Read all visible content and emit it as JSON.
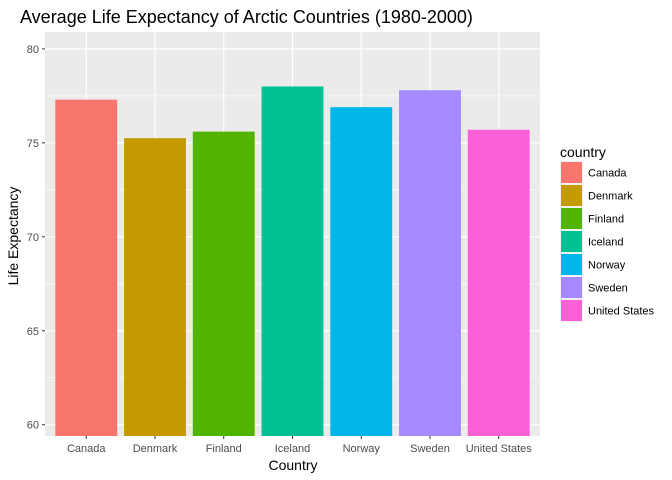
{
  "chart_data": {
    "type": "bar",
    "title": "Average Life Expectancy of Arctic Countries (1980-2000)",
    "xlabel": "Country",
    "ylabel": "Life Expectancy",
    "categories": [
      "Canada",
      "Denmark",
      "Finland",
      "Iceland",
      "Norway",
      "Sweden",
      "United States"
    ],
    "values": [
      77.3,
      75.25,
      75.6,
      78.0,
      76.9,
      77.8,
      75.7
    ],
    "colors": [
      "#F8766D",
      "#C49A00",
      "#53B400",
      "#00C094",
      "#00B6EB",
      "#A58AFF",
      "#FB61D7"
    ],
    "ylim": [
      59.4,
      80.9
    ],
    "yticks": [
      60,
      65,
      70,
      75,
      80
    ],
    "grid": true,
    "legend": {
      "title": "country",
      "placement": "right",
      "items": [
        "Canada",
        "Denmark",
        "Finland",
        "Iceland",
        "Norway",
        "Sweden",
        "United States"
      ]
    }
  }
}
